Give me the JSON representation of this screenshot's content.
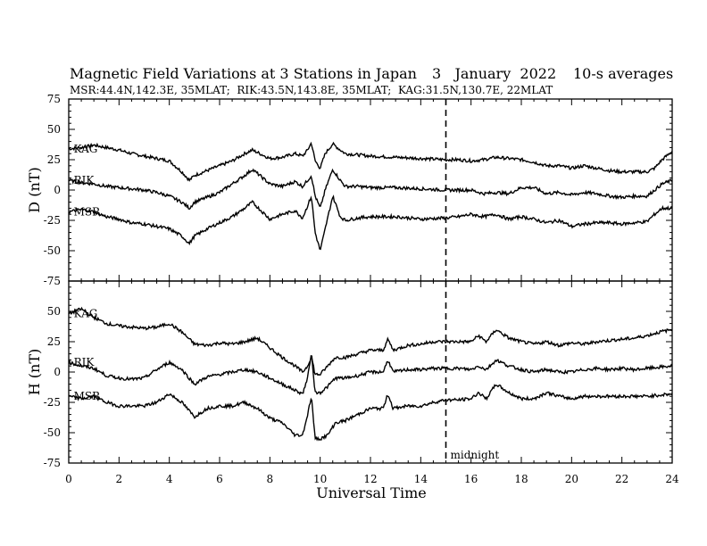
{
  "chart_data": {
    "type": "line",
    "title": "Magnetic Field Variations at 3 Stations in Japan",
    "date": "3   January  2022",
    "averaging": "10-s averages",
    "subtitle": "MSR:44.4N,142.3E, 35MLAT;  RIK:43.5N,143.8E, 35MLAT;  KAG:31.5N,130.7E, 22MLAT",
    "xlabel": "Universal Time",
    "xlim": [
      0,
      24
    ],
    "xticks": [
      0,
      2,
      4,
      6,
      8,
      10,
      12,
      14,
      16,
      18,
      20,
      22,
      24
    ],
    "midnight": {
      "x": 15,
      "label": "midnight"
    },
    "panels": [
      {
        "ylabel": "D (nT)",
        "ylim": [
          -75,
          75
        ],
        "yticks": [
          -75,
          -50,
          -25,
          0,
          25,
          50,
          75
        ],
        "series": [
          {
            "name": "KAG",
            "x": [
              0,
              0.5,
              1,
              1.5,
              2,
              2.5,
              3,
              3.5,
              4,
              4.5,
              4.8,
              5,
              5.5,
              6,
              6.5,
              7,
              7.3,
              7.6,
              8,
              8.5,
              9,
              9.3,
              9.5,
              9.65,
              9.8,
              10,
              10.2,
              10.5,
              10.8,
              11,
              11.5,
              12,
              13,
              14,
              15,
              15.5,
              16,
              16.5,
              17,
              17.5,
              18,
              18.5,
              19,
              19.5,
              20,
              20.5,
              21,
              21.5,
              22,
              22.5,
              23,
              23.3,
              23.6,
              24
            ],
            "y": [
              34,
              35,
              37,
              35,
              33,
              30,
              28,
              26,
              24,
              15,
              8,
              12,
              16,
              20,
              24,
              30,
              33,
              30,
              26,
              27,
              30,
              28,
              33,
              39,
              24,
              18,
              30,
              38,
              33,
              30,
              29,
              28,
              27,
              26,
              25,
              25,
              24,
              25,
              27,
              26,
              25,
              23,
              20,
              20,
              18,
              20,
              18,
              16,
              15,
              15,
              15,
              18,
              25,
              32
            ]
          },
          {
            "name": "RIK",
            "x": [
              0,
              0.5,
              1,
              1.5,
              2,
              2.5,
              3,
              3.5,
              4,
              4.5,
              4.8,
              5,
              5.5,
              6,
              6.5,
              7,
              7.3,
              7.6,
              8,
              8.5,
              9,
              9.3,
              9.5,
              9.65,
              9.8,
              10,
              10.2,
              10.5,
              10.8,
              11,
              11.5,
              12,
              13,
              14,
              15,
              15.5,
              16,
              16.5,
              17,
              17.5,
              18,
              18.5,
              19,
              19.5,
              20,
              20.5,
              21,
              21.5,
              22,
              22.5,
              23,
              23.3,
              23.6,
              24
            ],
            "y": [
              8,
              6,
              5,
              3,
              2,
              1,
              0,
              -2,
              -5,
              -10,
              -15,
              -10,
              -6,
              -2,
              5,
              12,
              17,
              12,
              5,
              3,
              7,
              3,
              8,
              12,
              -5,
              -15,
              0,
              17,
              8,
              3,
              3,
              2,
              2,
              1,
              0,
              0,
              0,
              -3,
              -2,
              -3,
              2,
              2,
              -3,
              -2,
              -4,
              -2,
              -3,
              -5,
              -6,
              -5,
              -5,
              0,
              5,
              8
            ]
          },
          {
            "name": "MSR",
            "x": [
              0,
              0.5,
              1,
              1.5,
              2,
              2.5,
              3,
              3.5,
              4,
              4.5,
              4.8,
              5,
              5.5,
              6,
              6.5,
              7,
              7.3,
              7.6,
              8,
              8.5,
              9,
              9.3,
              9.5,
              9.65,
              9.8,
              10,
              10.2,
              10.5,
              10.8,
              11,
              11.5,
              12,
              13,
              14,
              15,
              15.5,
              16,
              16.5,
              17,
              17.5,
              18,
              18.5,
              19,
              19.5,
              20,
              20.5,
              21,
              21.5,
              22,
              22.5,
              23,
              23.3,
              23.6,
              24
            ],
            "y": [
              -18,
              -16,
              -18,
              -22,
              -24,
              -27,
              -28,
              -30,
              -32,
              -38,
              -44,
              -38,
              -32,
              -27,
              -22,
              -15,
              -10,
              -16,
              -24,
              -20,
              -17,
              -23,
              -13,
              -5,
              -35,
              -50,
              -32,
              -5,
              -22,
              -25,
              -23,
              -22,
              -22,
              -24,
              -23,
              -22,
              -20,
              -22,
              -20,
              -24,
              -22,
              -24,
              -27,
              -25,
              -30,
              -28,
              -27,
              -27,
              -28,
              -27,
              -26,
              -20,
              -15,
              -15
            ]
          }
        ]
      },
      {
        "ylabel": "H (nT)",
        "ylim": [
          -75,
          75
        ],
        "yticks": [
          -75,
          -50,
          -25,
          0,
          25,
          50,
          75
        ],
        "series": [
          {
            "name": "KAG",
            "x": [
              0,
              0.5,
              1,
              1.5,
              2,
              2.5,
              3,
              3.5,
              4,
              4.5,
              5,
              5.5,
              6,
              6.5,
              7,
              7.5,
              8,
              8.5,
              9,
              9.3,
              9.5,
              9.65,
              9.8,
              10,
              10.3,
              10.6,
              11,
              11.5,
              12,
              12.5,
              12.7,
              12.9,
              13.5,
              14,
              14.5,
              15,
              15.5,
              16,
              16.3,
              16.6,
              17,
              17.5,
              18,
              18.5,
              19,
              19.5,
              20,
              20.5,
              21,
              21.5,
              22,
              22.5,
              23,
              23.5,
              24
            ],
            "y": [
              48,
              52,
              45,
              40,
              38,
              37,
              36,
              37,
              40,
              33,
              23,
              22,
              24,
              23,
              25,
              28,
              20,
              12,
              5,
              0,
              5,
              13,
              -2,
              -2,
              5,
              12,
              12,
              15,
              18,
              18,
              27,
              18,
              22,
              23,
              25,
              25,
              25,
              25,
              30,
              25,
              35,
              28,
              25,
              23,
              25,
              22,
              24,
              23,
              25,
              26,
              27,
              28,
              30,
              33,
              35
            ]
          },
          {
            "name": "RIK",
            "x": [
              0,
              0.5,
              1,
              1.5,
              2,
              2.5,
              3,
              3.5,
              4,
              4.5,
              5,
              5.5,
              6,
              6.5,
              7,
              7.5,
              8,
              8.5,
              9,
              9.3,
              9.5,
              9.65,
              9.8,
              10,
              10.3,
              10.6,
              11,
              11.5,
              12,
              12.5,
              12.7,
              12.9,
              13.5,
              14,
              14.5,
              15,
              15.5,
              16,
              16.3,
              16.6,
              17,
              17.5,
              18,
              18.5,
              19,
              19.5,
              20,
              20.5,
              21,
              21.5,
              22,
              22.5,
              23,
              23.5,
              24
            ],
            "y": [
              8,
              5,
              3,
              -3,
              -5,
              -6,
              -5,
              2,
              8,
              2,
              -10,
              -4,
              -2,
              0,
              2,
              0,
              -5,
              -10,
              -15,
              -18,
              -5,
              16,
              -17,
              -17,
              -12,
              -5,
              -5,
              -3,
              0,
              0,
              10,
              0,
              2,
              2,
              3,
              3,
              3,
              2,
              5,
              2,
              10,
              5,
              2,
              0,
              2,
              0,
              0,
              2,
              3,
              2,
              3,
              2,
              3,
              4,
              5
            ]
          },
          {
            "name": "MSR",
            "x": [
              0,
              0.5,
              1,
              1.5,
              2,
              2.5,
              3,
              3.5,
              4,
              4.5,
              5,
              5.5,
              6,
              6.5,
              7,
              7.5,
              8,
              8.5,
              9,
              9.3,
              9.5,
              9.65,
              9.8,
              10,
              10.3,
              10.6,
              11,
              11.5,
              12,
              12.5,
              12.7,
              12.9,
              13.5,
              14,
              14.5,
              15,
              15.5,
              16,
              16.3,
              16.6,
              17,
              17.5,
              18,
              18.5,
              19,
              19.5,
              20,
              20.5,
              21,
              21.5,
              22,
              22.5,
              23,
              23.5,
              24
            ],
            "y": [
              -20,
              -22,
              -20,
              -25,
              -28,
              -28,
              -28,
              -25,
              -18,
              -25,
              -37,
              -30,
              -28,
              -28,
              -25,
              -30,
              -38,
              -42,
              -52,
              -52,
              -35,
              -20,
              -55,
              -55,
              -52,
              -42,
              -40,
              -35,
              -30,
              -30,
              -18,
              -30,
              -28,
              -28,
              -25,
              -23,
              -23,
              -22,
              -17,
              -22,
              -10,
              -17,
              -22,
              -22,
              -17,
              -20,
              -22,
              -20,
              -20,
              -20,
              -20,
              -20,
              -20,
              -19,
              -18
            ]
          }
        ]
      }
    ]
  }
}
